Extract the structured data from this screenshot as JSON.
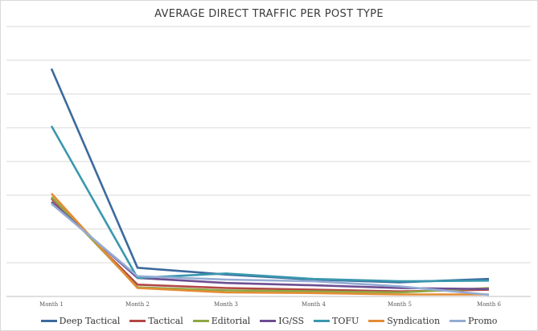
{
  "chart_data": {
    "type": "line",
    "title": "AVERAGE DIRECT TRAFFIC PER POST TYPE",
    "categories": [
      "Month 1",
      "Month 2",
      "Month 3",
      "Month 4",
      "Month 5",
      "Month 6"
    ],
    "ylim": [
      0,
      8
    ],
    "grid": true,
    "legend_position": "bottom",
    "series": [
      {
        "name": "Deep Tactical",
        "color": "#3c6a9d",
        "values": [
          6.75,
          0.85,
          0.65,
          0.5,
          0.42,
          0.52
        ]
      },
      {
        "name": "Tactical",
        "color": "#b24745",
        "values": [
          2.9,
          0.35,
          0.25,
          0.2,
          0.15,
          0.2
        ]
      },
      {
        "name": "Editorial",
        "color": "#8fa843",
        "values": [
          2.95,
          0.27,
          0.18,
          0.15,
          0.12,
          0.25
        ]
      },
      {
        "name": "IG/SS",
        "color": "#6d4e92",
        "values": [
          2.8,
          0.55,
          0.4,
          0.33,
          0.25,
          0.22
        ]
      },
      {
        "name": "TOFU",
        "color": "#3a98ad",
        "values": [
          5.05,
          0.55,
          0.68,
          0.52,
          0.45,
          0.47
        ]
      },
      {
        "name": "Syndication",
        "color": "#e48c35",
        "values": [
          3.05,
          0.25,
          0.12,
          0.1,
          0.06,
          0.06
        ]
      },
      {
        "name": "Promo",
        "color": "#94acd4",
        "values": [
          2.75,
          0.6,
          0.5,
          0.45,
          0.3,
          0.05
        ]
      }
    ]
  }
}
